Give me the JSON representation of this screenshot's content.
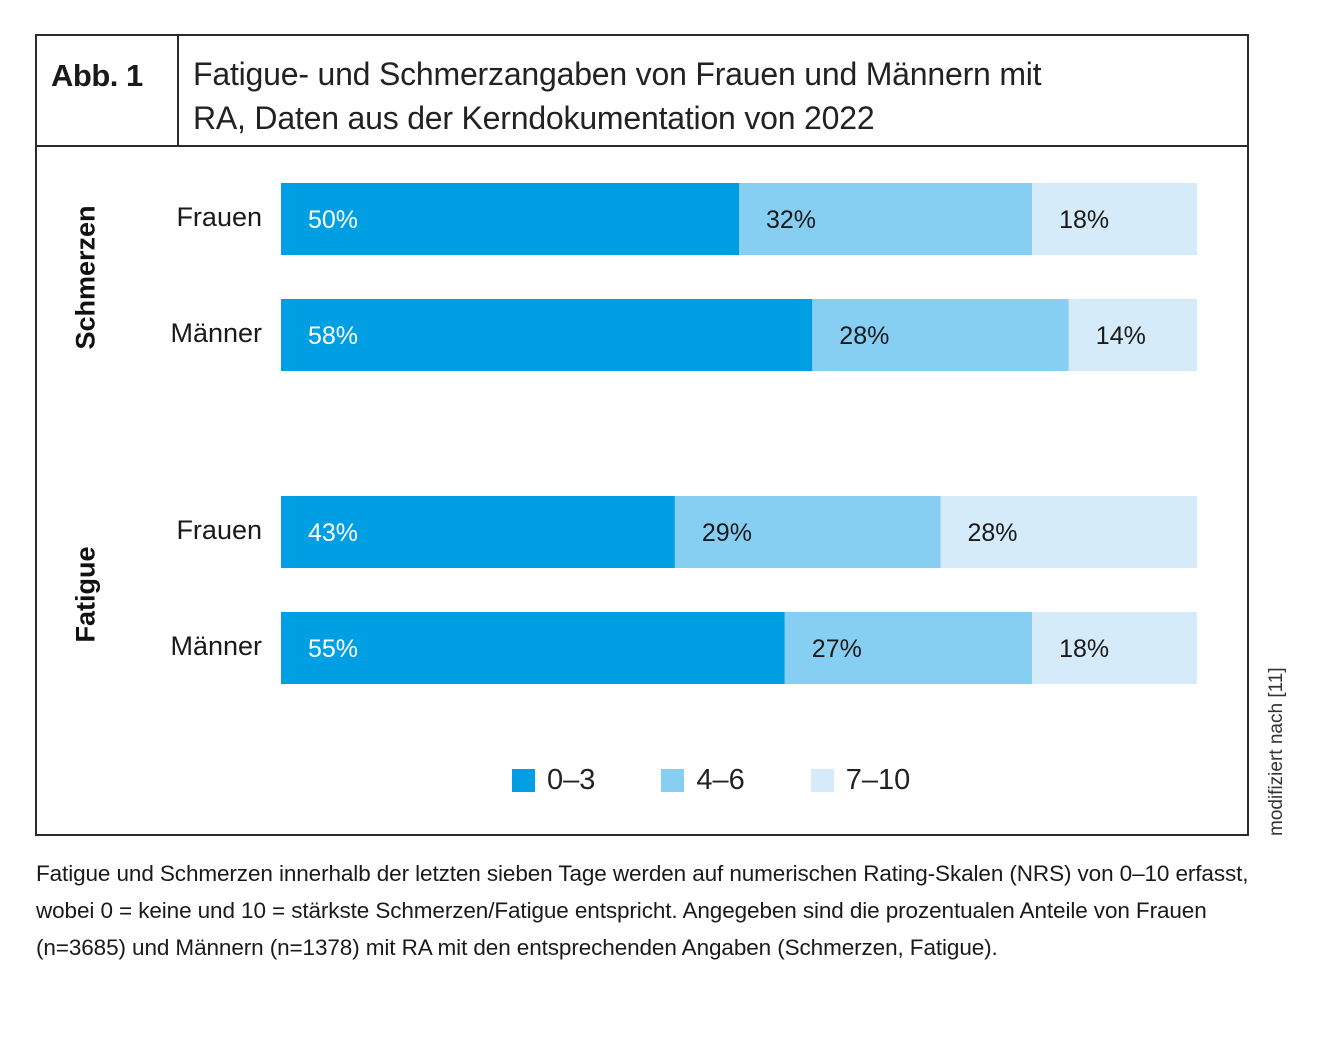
{
  "figure": {
    "number_label": "Abb. 1",
    "title": "Fatigue- und Schmerzangaben von Frauen und Männern mit RA, Daten aus der Kerndokumentation von 2022",
    "title_line1": "Fatigue- und Schmerzangaben von Frauen und Männern mit",
    "title_line2": "RA, Daten aus der Kerndokumentation von 2022",
    "source_note": "modifiziert nach [11]",
    "caption": "Fatigue und Schmerzen innerhalb der letzten sieben Tage werden auf numerischen Rating-Skalen (NRS) von 0–10 erfasst, wobei 0 = keine und 10 = stärkste Schmerzen/Fatigue entspricht. Angegeben sind die prozentualen Anteile von Frauen (n=3685) und Männern (n=1378) mit RA mit den entsprechenden Angaben (Schmerzen, Fatigue)."
  },
  "colors": {
    "range_0_3": "#009fe3",
    "range_4_6": "#86cff3",
    "range_7_10": "#d5ebfa",
    "label_dark": "#1a1a1a",
    "label_light": "#ffffff",
    "frame": "#2b2b2b"
  },
  "chart_data": {
    "type": "bar",
    "orientation": "horizontal",
    "stacked": true,
    "title": "Fatigue- und Schmerzangaben von Frauen und Männern mit RA, Daten aus der Kerndokumentation von 2022",
    "xlabel": "",
    "ylabel": "",
    "xlim": [
      0,
      100
    ],
    "unit": "%",
    "grid": false,
    "legend_position": "bottom-center",
    "groups": [
      {
        "name": "Schmerzen",
        "categories": [
          "Frauen",
          "Männer"
        ]
      },
      {
        "name": "Fatigue",
        "categories": [
          "Frauen",
          "Männer"
        ]
      }
    ],
    "categories": [
      "Schmerzen – Frauen",
      "Schmerzen – Männer",
      "Fatigue – Frauen",
      "Fatigue – Männer"
    ],
    "row_labels": [
      "Frauen",
      "Männer",
      "Frauen",
      "Männer"
    ],
    "series": [
      {
        "name": "0–3",
        "values": [
          50,
          58,
          43,
          55
        ]
      },
      {
        "name": "4–6",
        "values": [
          32,
          28,
          29,
          27
        ]
      },
      {
        "name": "7–10",
        "values": [
          18,
          14,
          28,
          18
        ]
      }
    ],
    "data_labels": [
      [
        "50%",
        "58%",
        "43%",
        "55%"
      ],
      [
        "32%",
        "28%",
        "29%",
        "27%"
      ],
      [
        "18%",
        "14%",
        "28%",
        "18%"
      ]
    ],
    "legend": [
      "0–3",
      "4–6",
      "7–10"
    ]
  }
}
